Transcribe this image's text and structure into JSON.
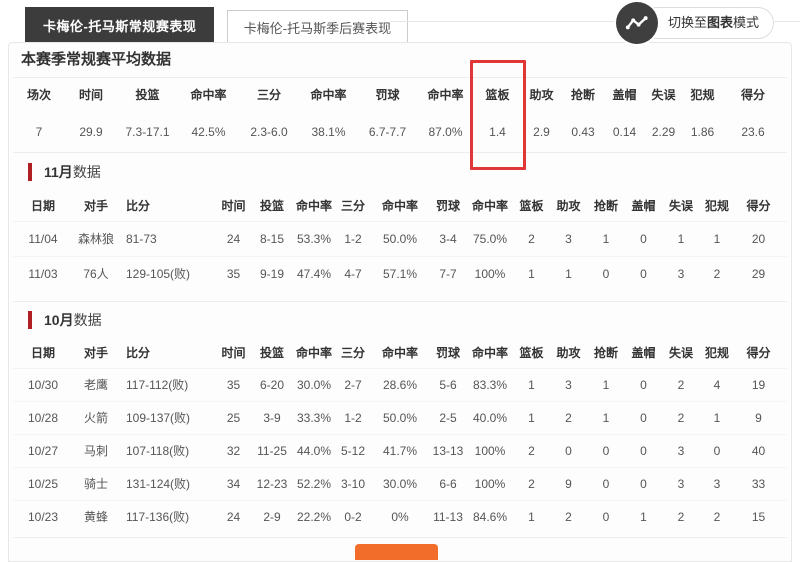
{
  "tabs": [
    {
      "label": "卡梅伦-托马斯常规赛表现",
      "active": true
    },
    {
      "label": "卡梅伦-托马斯季后赛表现",
      "active": false
    }
  ],
  "chart_toggle": {
    "icon": "line-chart-icon",
    "label_prefix": "切换至",
    "label_bold": "图表",
    "label_suffix": "模式"
  },
  "season_summary": {
    "title": "本赛季常规赛平均数据",
    "headers": [
      "场次",
      "时间",
      "投篮",
      "命中率",
      "三分",
      "命中率",
      "罚球",
      "命中率",
      "篮板",
      "助攻",
      "抢断",
      "盖帽",
      "失误",
      "犯规",
      "得分"
    ],
    "values": [
      "7",
      "29.9",
      "7.3-17.1",
      "42.5%",
      "2.3-6.0",
      "38.1%",
      "6.7-7.7",
      "87.0%",
      "1.4",
      "2.9",
      "0.43",
      "0.14",
      "2.29",
      "1.86",
      "23.6"
    ],
    "highlighted_column": "篮板",
    "highlighted_value": "1.4"
  },
  "month_headers": [
    "日期",
    "对手",
    "比分",
    "时间",
    "投篮",
    "命中率",
    "三分",
    "命中率",
    "罚球",
    "命中率",
    "篮板",
    "助攻",
    "抢断",
    "盖帽",
    "失误",
    "犯规",
    "得分"
  ],
  "monthly_sections": [
    {
      "title_num": "11月",
      "title_rest": "数据",
      "rows": [
        [
          "11/04",
          "森林狼",
          "81-73",
          "24",
          "8-15",
          "53.3%",
          "1-2",
          "50.0%",
          "3-4",
          "75.0%",
          "2",
          "3",
          "1",
          "0",
          "1",
          "1",
          "20"
        ],
        [
          "11/03",
          "76人",
          "129-105(败)",
          "35",
          "9-19",
          "47.4%",
          "4-7",
          "57.1%",
          "7-7",
          "100%",
          "1",
          "1",
          "0",
          "0",
          "3",
          "2",
          "29"
        ]
      ]
    },
    {
      "title_num": "10月",
      "title_rest": "数据",
      "rows": [
        [
          "10/30",
          "老鹰",
          "117-112(败)",
          "35",
          "6-20",
          "30.0%",
          "2-7",
          "28.6%",
          "5-6",
          "83.3%",
          "1",
          "3",
          "1",
          "0",
          "2",
          "4",
          "19"
        ],
        [
          "10/28",
          "火箭",
          "109-137(败)",
          "25",
          "3-9",
          "33.3%",
          "1-2",
          "50.0%",
          "2-5",
          "40.0%",
          "1",
          "2",
          "1",
          "0",
          "2",
          "1",
          "9"
        ],
        [
          "10/27",
          "马刺",
          "107-118(败)",
          "32",
          "11-25",
          "44.0%",
          "5-12",
          "41.7%",
          "13-13",
          "100%",
          "2",
          "0",
          "0",
          "0",
          "3",
          "0",
          "40"
        ],
        [
          "10/25",
          "骑士",
          "131-124(败)",
          "34",
          "12-23",
          "52.2%",
          "3-10",
          "30.0%",
          "6-6",
          "100%",
          "2",
          "9",
          "0",
          "0",
          "3",
          "3",
          "33"
        ],
        [
          "10/23",
          "黄蜂",
          "117-136(败)",
          "24",
          "2-9",
          "22.2%",
          "0-2",
          "0%",
          "11-13",
          "84.6%",
          "1",
          "2",
          "0",
          "1",
          "2",
          "2",
          "15"
        ]
      ]
    }
  ],
  "colors": {
    "active_tab_bg": "#3c3c3c",
    "highlight_red": "#e03636",
    "section_bar_red": "#b01f24",
    "more_button_orange": "#f26c2a"
  }
}
